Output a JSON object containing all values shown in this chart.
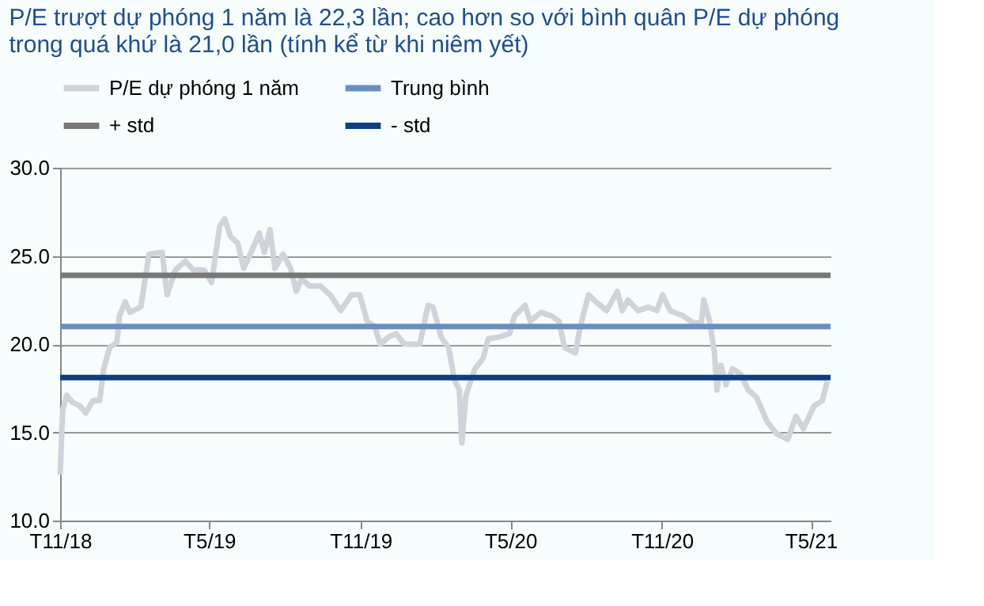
{
  "chart_data": {
    "type": "line",
    "title": "P/E trượt dự phóng 1 năm là 22,3 lần; cao hơn so với bình quân P/E dự phóng trong quá khứ là 21,0 lần (tính kể từ khi niêm yết)",
    "xlim": [
      "2018-11-01",
      "2021-05-25"
    ],
    "xticks": [
      {
        "value": "2018-11-01",
        "label": "T11/18"
      },
      {
        "value": "2019-05-01",
        "label": "T5/19"
      },
      {
        "value": "2019-11-01",
        "label": "T11/19"
      },
      {
        "value": "2020-05-01",
        "label": "T5/20"
      },
      {
        "value": "2020-11-01",
        "label": "T11/20"
      },
      {
        "value": "2021-05-01",
        "label": "T5/21"
      }
    ],
    "ylim": [
      10,
      30
    ],
    "yticks": [
      {
        "value": 10,
        "label": "10.0"
      },
      {
        "value": 15,
        "label": "15.0"
      },
      {
        "value": 20,
        "label": "20.0"
      },
      {
        "value": 25,
        "label": "25.0"
      },
      {
        "value": 30,
        "label": "30.0"
      }
    ],
    "grid": "y",
    "legend": "top",
    "marker": "none",
    "line_style": "solid",
    "series": [
      {
        "name": "P/E dự phóng 1 năm",
        "color": "#d0d3d9",
        "x": [
          "2018-11-01",
          "2018-11-04",
          "2018-11-09",
          "2018-11-16",
          "2018-11-25",
          "2018-12-02",
          "2018-12-11",
          "2018-12-19",
          "2018-12-24",
          "2018-12-31",
          "2019-01-09",
          "2019-01-12",
          "2019-01-19",
          "2019-01-25",
          "2019-02-07",
          "2019-02-17",
          "2019-03-05",
          "2019-03-11",
          "2019-03-21",
          "2019-04-02",
          "2019-04-12",
          "2019-04-25",
          "2019-05-04",
          "2019-05-14",
          "2019-05-20",
          "2019-05-27",
          "2019-06-05",
          "2019-06-12",
          "2019-06-21",
          "2019-07-01",
          "2019-07-07",
          "2019-07-14",
          "2019-07-20",
          "2019-07-30",
          "2019-08-08",
          "2019-08-15",
          "2019-08-21",
          "2019-08-31",
          "2019-09-13",
          "2019-09-25",
          "2019-10-08",
          "2019-10-21",
          "2019-10-31",
          "2019-11-09",
          "2019-11-18",
          "2019-11-25",
          "2019-12-05",
          "2019-12-14",
          "2019-12-24",
          "2020-01-12",
          "2020-01-22",
          "2020-01-28",
          "2020-02-07",
          "2020-02-16",
          "2020-02-23",
          "2020-02-29",
          "2020-03-03",
          "2020-03-08",
          "2020-03-19",
          "2020-03-29",
          "2020-04-04",
          "2020-04-17",
          "2020-04-30",
          "2020-05-06",
          "2020-05-19",
          "2020-05-25",
          "2020-06-07",
          "2020-06-20",
          "2020-06-29",
          "2020-07-06",
          "2020-07-19",
          "2020-07-25",
          "2020-08-04",
          "2020-08-13",
          "2020-08-26",
          "2020-09-08",
          "2020-09-14",
          "2020-09-21",
          "2020-10-03",
          "2020-10-16",
          "2020-10-26",
          "2020-11-02",
          "2020-11-11",
          "2020-11-27",
          "2020-12-09",
          "2020-12-19",
          "2020-12-22",
          "2020-12-29",
          "2021-01-04",
          "2021-01-07",
          "2021-01-12",
          "2021-01-18",
          "2021-01-26",
          "2021-02-05",
          "2021-02-14",
          "2021-02-24",
          "2021-03-09",
          "2021-03-21",
          "2021-04-03",
          "2021-04-13",
          "2021-04-22",
          "2021-05-05",
          "2021-05-15",
          "2021-05-21"
        ],
        "values": [
          12.6,
          16.2,
          17.1,
          16.7,
          16.5,
          16.1,
          16.8,
          16.8,
          18.6,
          19.8,
          20.1,
          21.6,
          22.4,
          21.8,
          22.1,
          25.1,
          25.2,
          22.8,
          24.2,
          24.7,
          24.2,
          24.2,
          23.5,
          26.7,
          27.1,
          26.1,
          25.7,
          24.3,
          25.2,
          26.3,
          25.2,
          26.5,
          24.3,
          25.1,
          24.3,
          23.0,
          23.7,
          23.3,
          23.3,
          22.8,
          21.9,
          22.8,
          22.8,
          21.3,
          21.0,
          20.0,
          20.4,
          20.6,
          20.0,
          20.0,
          22.2,
          22.1,
          20.4,
          19.8,
          18.0,
          17.4,
          14.4,
          17.1,
          18.6,
          19.2,
          20.3,
          20.4,
          20.6,
          21.6,
          22.2,
          21.3,
          21.8,
          21.6,
          21.3,
          19.8,
          19.5,
          21.0,
          22.8,
          22.4,
          21.9,
          23.0,
          21.9,
          22.5,
          21.9,
          22.1,
          21.9,
          22.8,
          21.9,
          21.6,
          21.2,
          21.2,
          22.5,
          21.3,
          19.5,
          17.4,
          18.8,
          17.7,
          18.6,
          18.3,
          17.4,
          17.0,
          15.6,
          14.9,
          14.6,
          15.9,
          15.2,
          16.5,
          16.8,
          17.9
        ]
      },
      {
        "name": "Trung bình",
        "color": "#6a8fbf",
        "x": [
          "2018-11-01",
          "2021-05-25"
        ],
        "values": [
          21.0,
          21.0
        ]
      },
      {
        "name": "+ std",
        "color": "#787878",
        "x": [
          "2018-11-01",
          "2021-05-25"
        ],
        "values": [
          23.9,
          23.9
        ]
      },
      {
        "name": "- std",
        "color": "#0d3d85",
        "x": [
          "2018-11-01",
          "2021-05-25"
        ],
        "values": [
          18.1,
          18.1
        ]
      }
    ]
  }
}
